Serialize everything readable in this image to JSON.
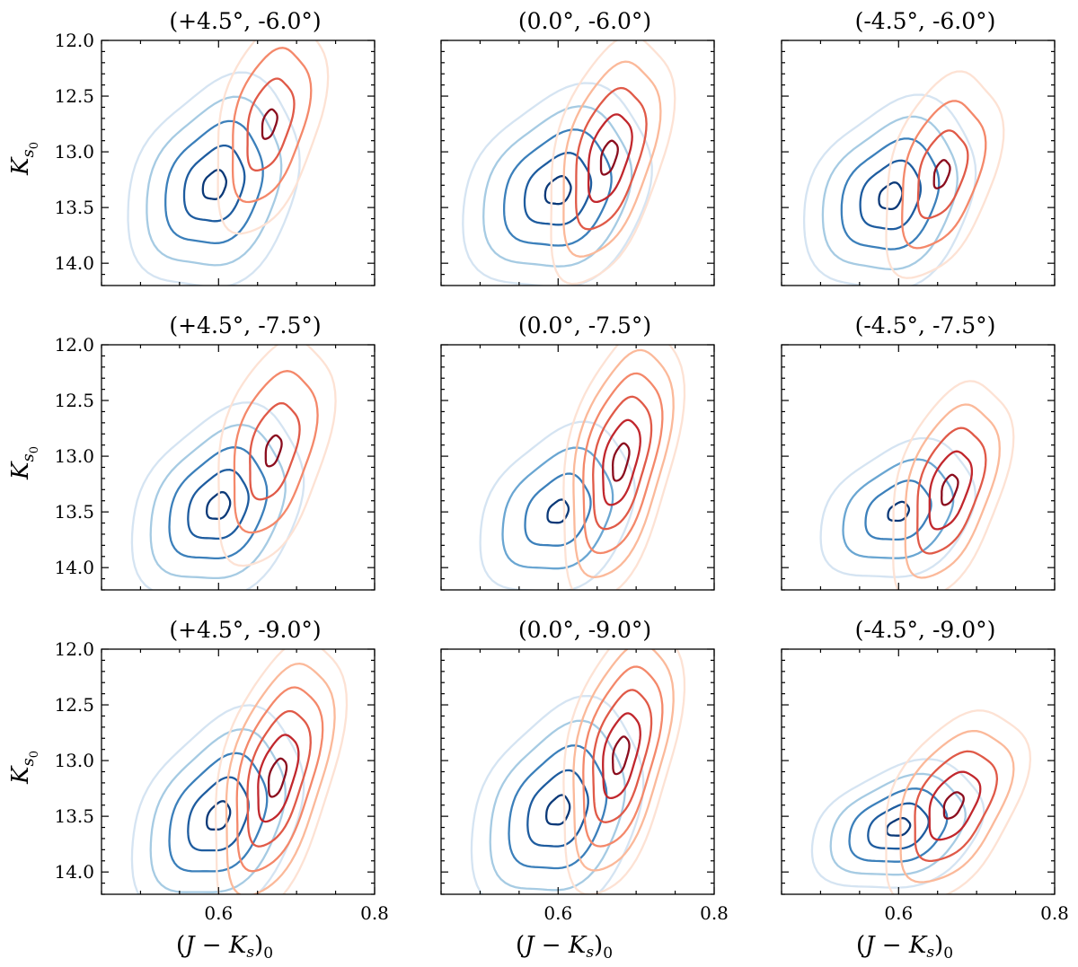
{
  "chart_data": {
    "type": "contour",
    "layout": "3x3 grid of density contour panels",
    "xlabel": "(J − K_s)_0",
    "ylabel": "K_s0",
    "xlim": [
      0.45,
      0.8
    ],
    "ylim": [
      14.2,
      12.0
    ],
    "xticks": [
      0.6,
      0.8
    ],
    "xtick_labels": [
      "0.6",
      "0.8"
    ],
    "yticks": [
      12.0,
      12.5,
      13.0,
      13.5,
      14.0
    ],
    "ytick_labels": [
      "12.0",
      "12.5",
      "13.0",
      "13.5",
      "14.0"
    ],
    "colormaps": {
      "blue_population": [
        "#d5e4f2",
        "#a6cbe3",
        "#6aa6d2",
        "#3c80bb",
        "#1e5c9f",
        "#0b3978"
      ],
      "red_population": [
        "#fde2d4",
        "#fbb99a",
        "#f4886a",
        "#e05a48",
        "#c1272d",
        "#8b0d1e"
      ]
    },
    "panels": [
      {
        "title": "(+4.5°, -6.0°)",
        "blue": {
          "cx": 0.595,
          "cy": 13.3,
          "sx": 0.05,
          "sy": 0.42,
          "rho": 0.25,
          "levels": 5
        },
        "red": {
          "cx": 0.665,
          "cy": 12.75,
          "sx": 0.032,
          "sy": 0.4,
          "rho": 0.45,
          "levels": 4
        }
      },
      {
        "title": "(0.0°, -6.0°)",
        "blue": {
          "cx": 0.6,
          "cy": 13.35,
          "sx": 0.055,
          "sy": 0.4,
          "rho": 0.25,
          "levels": 5
        },
        "red": {
          "cx": 0.665,
          "cy": 13.05,
          "sx": 0.036,
          "sy": 0.45,
          "rho": 0.5,
          "levels": 5
        }
      },
      {
        "title": "(-4.5°, -6.0°)",
        "blue": {
          "cx": 0.59,
          "cy": 13.4,
          "sx": 0.05,
          "sy": 0.38,
          "rho": 0.25,
          "levels": 5
        },
        "red": {
          "cx": 0.655,
          "cy": 13.2,
          "sx": 0.034,
          "sy": 0.38,
          "rho": 0.45,
          "levels": 4
        }
      },
      {
        "title": "(+4.5°, -7.5°)",
        "blue": {
          "cx": 0.6,
          "cy": 13.45,
          "sx": 0.05,
          "sy": 0.38,
          "rho": 0.3,
          "levels": 5
        },
        "red": {
          "cx": 0.67,
          "cy": 12.95,
          "sx": 0.034,
          "sy": 0.42,
          "rho": 0.45,
          "levels": 4
        }
      },
      {
        "title": "(0.0°, -7.5°)",
        "blue": {
          "cx": 0.6,
          "cy": 13.5,
          "sx": 0.045,
          "sy": 0.33,
          "rho": 0.3,
          "levels": 4
        },
        "red": {
          "cx": 0.68,
          "cy": 13.05,
          "sx": 0.035,
          "sy": 0.5,
          "rho": 0.5,
          "levels": 6
        }
      },
      {
        "title": "(-4.5°, -7.5°)",
        "blue": {
          "cx": 0.6,
          "cy": 13.5,
          "sx": 0.045,
          "sy": 0.27,
          "rho": 0.3,
          "levels": 4
        },
        "red": {
          "cx": 0.665,
          "cy": 13.3,
          "sx": 0.035,
          "sy": 0.4,
          "rho": 0.5,
          "levels": 5
        }
      },
      {
        "title": "(+4.5°, -9.0°)",
        "blue": {
          "cx": 0.6,
          "cy": 13.5,
          "sx": 0.05,
          "sy": 0.4,
          "rho": 0.35,
          "levels": 5
        },
        "red": {
          "cx": 0.675,
          "cy": 13.15,
          "sx": 0.038,
          "sy": 0.5,
          "rho": 0.55,
          "levels": 6
        }
      },
      {
        "title": "(0.0°, -9.0°)",
        "blue": {
          "cx": 0.6,
          "cy": 13.45,
          "sx": 0.05,
          "sy": 0.42,
          "rho": 0.3,
          "levels": 5
        },
        "red": {
          "cx": 0.68,
          "cy": 12.95,
          "sx": 0.035,
          "sy": 0.5,
          "rho": 0.5,
          "levels": 6
        }
      },
      {
        "title": "(-4.5°, -9.0°)",
        "blue": {
          "cx": 0.6,
          "cy": 13.6,
          "sx": 0.05,
          "sy": 0.25,
          "rho": 0.3,
          "levels": 5
        },
        "red": {
          "cx": 0.67,
          "cy": 13.4,
          "sx": 0.042,
          "sy": 0.35,
          "rho": 0.5,
          "levels": 5
        }
      }
    ]
  }
}
